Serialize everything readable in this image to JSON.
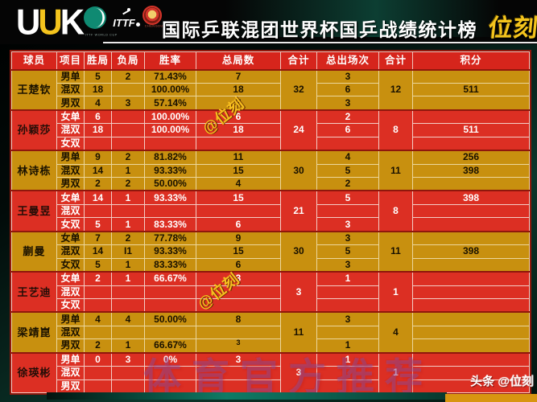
{
  "header": {
    "brand_letters": [
      "U",
      "U",
      "K"
    ],
    "logos": {
      "world_cup_label": "ITTF WORLD CUP",
      "ittf_label": "ITTF",
      "chengdu_label": "CHENGDU"
    },
    "title": "国际乒联混团世界杯国乒战绩统计榜",
    "badge": "位刻"
  },
  "chart_data": {
    "type": "table",
    "title": "国际乒联混团世界杯国乒战绩统计榜",
    "columns": [
      "球员",
      "项目",
      "胜局",
      "负局",
      "胜率",
      "总局数",
      "合计",
      "总出场次",
      "合计",
      "积分"
    ],
    "players": [
      {
        "name": "王楚钦",
        "color": "gold",
        "total_games": "32",
        "total_apps": "12",
        "rows": [
          {
            "event": "男单",
            "wins": "5",
            "losses": "2",
            "rate": "71.43%",
            "games": "7",
            "apps": "3",
            "points": ""
          },
          {
            "event": "混双",
            "wins": "18",
            "losses": "",
            "rate": "100.00%",
            "games": "18",
            "apps": "6",
            "points": "511"
          },
          {
            "event": "男双",
            "wins": "4",
            "losses": "3",
            "rate": "57.14%",
            "games": "7",
            "apps": "3",
            "points": ""
          }
        ]
      },
      {
        "name": "孙颖莎",
        "color": "red",
        "total_games": "24",
        "total_apps": "8",
        "rows": [
          {
            "event": "女单",
            "wins": "6",
            "losses": "",
            "rate": "100.00%",
            "games": "6",
            "apps": "2",
            "points": ""
          },
          {
            "event": "混双",
            "wins": "18",
            "losses": "",
            "rate": "100.00%",
            "games": "18",
            "apps": "6",
            "points": "511"
          },
          {
            "event": "女双",
            "wins": "",
            "losses": "",
            "rate": "",
            "games": "",
            "apps": "",
            "points": ""
          }
        ]
      },
      {
        "name": "林诗栋",
        "color": "gold",
        "total_games": "30",
        "total_apps": "11",
        "rows": [
          {
            "event": "男单",
            "wins": "9",
            "losses": "2",
            "rate": "81.82%",
            "games": "11",
            "apps": "4",
            "points": "256"
          },
          {
            "event": "混双",
            "wins": "14",
            "losses": "1",
            "rate": "93.33%",
            "games": "15",
            "apps": "5",
            "points": "398"
          },
          {
            "event": "男双",
            "wins": "2",
            "losses": "2",
            "rate": "50.00%",
            "games": "4",
            "apps": "2",
            "points": ""
          }
        ]
      },
      {
        "name": "王曼昱",
        "color": "red",
        "total_games": "21",
        "total_apps": "8",
        "rows": [
          {
            "event": "女单",
            "wins": "14",
            "losses": "1",
            "rate": "93.33%",
            "games": "15",
            "apps": "5",
            "points": "398"
          },
          {
            "event": "混双",
            "wins": "",
            "losses": "",
            "rate": "",
            "games": "",
            "apps": "",
            "points": ""
          },
          {
            "event": "女双",
            "wins": "5",
            "losses": "1",
            "rate": "83.33%",
            "games": "6",
            "apps": "3",
            "points": ""
          }
        ]
      },
      {
        "name": "蒯曼",
        "color": "gold",
        "total_games": "30",
        "total_apps": "11",
        "rows": [
          {
            "event": "女单",
            "wins": "7",
            "losses": "2",
            "rate": "77.78%",
            "games": "9",
            "apps": "3",
            "points": ""
          },
          {
            "event": "混双",
            "wins": "14",
            "losses": "I1",
            "rate": "93.33%",
            "games": "15",
            "apps": "5",
            "points": "398"
          },
          {
            "event": "女双",
            "wins": "5",
            "losses": "1",
            "rate": "83.33%",
            "games": "6",
            "apps": "3",
            "points": ""
          }
        ]
      },
      {
        "name": "王艺迪",
        "color": "red",
        "total_games": "3",
        "total_apps": "1",
        "rows": [
          {
            "event": "女单",
            "wins": "2",
            "losses": "1",
            "rate": "66.67%",
            "games": "3",
            "apps": "1",
            "points": ""
          },
          {
            "event": "混双",
            "wins": "",
            "losses": "",
            "rate": "",
            "games": "",
            "apps": "",
            "points": ""
          },
          {
            "event": "女双",
            "wins": "",
            "losses": "",
            "rate": "",
            "games": "",
            "apps": "",
            "points": ""
          }
        ]
      },
      {
        "name": "梁靖崑",
        "color": "gold",
        "total_games": "11",
        "total_apps": "4",
        "rows": [
          {
            "event": "男单",
            "wins": "4",
            "losses": "4",
            "rate": "50.00%",
            "games": "8",
            "apps": "3",
            "points": ""
          },
          {
            "event": "混双",
            "wins": "",
            "losses": "",
            "rate": "",
            "games": "",
            "apps": "",
            "points": ""
          },
          {
            "event": "男双",
            "wins": "2",
            "losses": "1",
            "rate": "66.67%",
            "games": "3",
            "games_sup": true,
            "apps": "1",
            "points": ""
          }
        ]
      },
      {
        "name": "徐瑛彬",
        "color": "red",
        "total_games": "3",
        "total_apps": "1",
        "rows": [
          {
            "event": "男单",
            "wins": "0",
            "losses": "3",
            "rate": "0%",
            "games": "3",
            "apps": "1",
            "points": ""
          },
          {
            "event": "混双",
            "wins": "",
            "losses": "",
            "rate": "",
            "games": "",
            "apps": "",
            "points": ""
          },
          {
            "event": "男双",
            "wins": "",
            "losses": "",
            "rate": "",
            "games": "",
            "apps": "",
            "points": ""
          }
        ]
      }
    ]
  },
  "watermarks": {
    "stamp": "@位刻",
    "banner": "体育官方推荐"
  },
  "footer": {
    "brand": "头条",
    "handle": "@位刻"
  },
  "colors": {
    "gold_row": "#C8900F",
    "red_row": "#DC2F23",
    "header_red": "#D6251C",
    "accent_yellow": "#F4C41D",
    "teal": "#0F8A72"
  }
}
